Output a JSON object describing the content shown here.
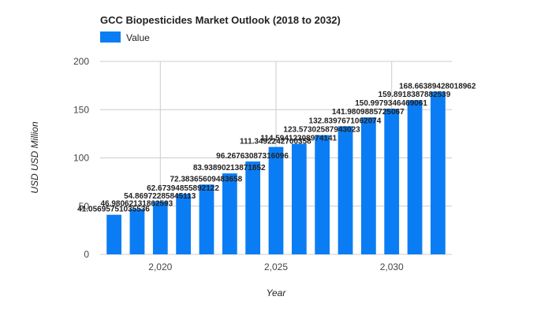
{
  "chart_data": {
    "type": "bar",
    "title": "GCC Biopesticides Market Outlook (2018 to 2032)",
    "xlabel": "Year",
    "ylabel": "USD USD Million",
    "legend": {
      "position": "top-left",
      "entries": [
        "Value"
      ]
    },
    "grid": true,
    "ylim": [
      0,
      200
    ],
    "yticks": [
      0,
      50,
      100,
      150,
      200
    ],
    "xlim": [
      2017.4,
      2032.6
    ],
    "xticks": [
      2020,
      2025,
      2030
    ],
    "xtick_labels": [
      "2,020",
      "2,025",
      "2,030"
    ],
    "color": "#0b7df4",
    "series": [
      {
        "name": "Value",
        "x": [
          2018,
          2019,
          2020,
          2021,
          2022,
          2023,
          2024,
          2025,
          2026,
          2027,
          2028,
          2029,
          2030,
          2031,
          2032
        ],
        "values": [
          41.05695751035536,
          46.98062131862593,
          54.86972285845113,
          62.67394855892122,
          72.38365609483658,
          83.93890213871852,
          96.26763087316095,
          111.3492242700358,
          114.59412308974142,
          123.57302587943023,
          132.8397671062074,
          141.9809885725067,
          150.9979346469061,
          159.8918387882539,
          168.66389428018962
        ],
        "labels": [
          "41.05695751035536",
          "46.98062131862593",
          "54.86972285845113",
          "62.67394855892122",
          "72.38365609483658",
          "83.93890213871852",
          "96.26763087316096",
          "111.3492242700358",
          "114.59412308974141",
          "123.57302587943023",
          "132.8397671062074",
          "141.9809885725067",
          "150.9979346469061",
          "159.8918387882539",
          "168.66389428018962"
        ]
      }
    ]
  }
}
